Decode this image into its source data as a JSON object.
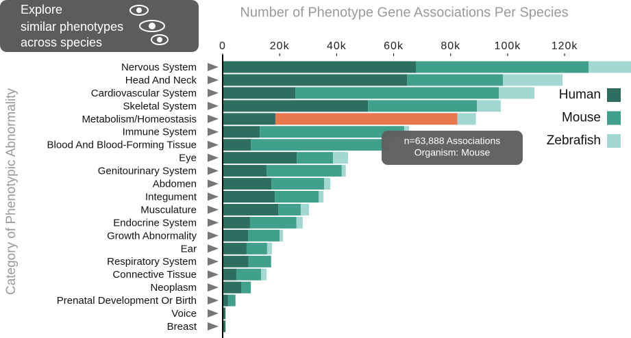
{
  "chart_data": {
    "type": "stacked-barh",
    "title": "Number of Phenotype Gene Associations Per Species",
    "y_axis_label": "Category of Phenotypic Abnormality",
    "explore_panel": [
      "Explore",
      "similar phenotypes",
      "across species"
    ],
    "categories": [
      "Nervous System",
      "Head And Neck",
      "Cardiovascular System",
      "Skeletal System",
      "Metabolism/Homeostasis",
      "Immune System",
      "Blood And Blood-Forming Tissue",
      "Eye",
      "Genitourinary System",
      "Abdomen",
      "Integument",
      "Musculature",
      "Endocrine System",
      "Growth Abnormality",
      "Ear",
      "Respiratory System",
      "Connective Tissue",
      "Neoplasm",
      "Prenatal Development Or Birth",
      "Voice",
      "Breast"
    ],
    "series": [
      {
        "name": "Human",
        "color": "#2e6e60",
        "values": [
          67800,
          64700,
          25500,
          51000,
          18500,
          13000,
          9900,
          26000,
          15400,
          17100,
          18300,
          19500,
          9600,
          8900,
          8400,
          9100,
          4800,
          6500,
          1900,
          1000,
          1000
        ]
      },
      {
        "name": "Mouse",
        "color": "#41a08c",
        "values": [
          60600,
          33700,
          71400,
          38200,
          63888,
          50700,
          46900,
          12700,
          26400,
          18500,
          15400,
          7900,
          16300,
          11100,
          7200,
          7900,
          8700,
          3400,
          2600,
          0,
          0
        ]
      },
      {
        "name": "Zebrafish",
        "color": "#a3d8d2",
        "values": [
          15000,
          20900,
          12500,
          8400,
          6500,
          1700,
          2000,
          5300,
          1400,
          2200,
          1700,
          2900,
          2200,
          1200,
          1700,
          0,
          1900,
          0,
          0,
          0,
          0
        ]
      }
    ],
    "highlight": {
      "series": 1,
      "index": 4,
      "color": "#e8784f"
    },
    "tooltip": [
      "n=63,888 Associations",
      "Organism: Mouse"
    ],
    "xlim": [
      0,
      143300
    ],
    "xticks": [
      0,
      {
        "value": 20000,
        "label": "20k"
      },
      {
        "value": 40000,
        "label": "40k"
      },
      {
        "value": 60000,
        "label": "60k"
      },
      {
        "value": 80000,
        "label": "80k"
      },
      {
        "value": 100000,
        "label": "100k"
      },
      {
        "value": 120000,
        "label": "120k"
      }
    ],
    "legend": "right"
  }
}
